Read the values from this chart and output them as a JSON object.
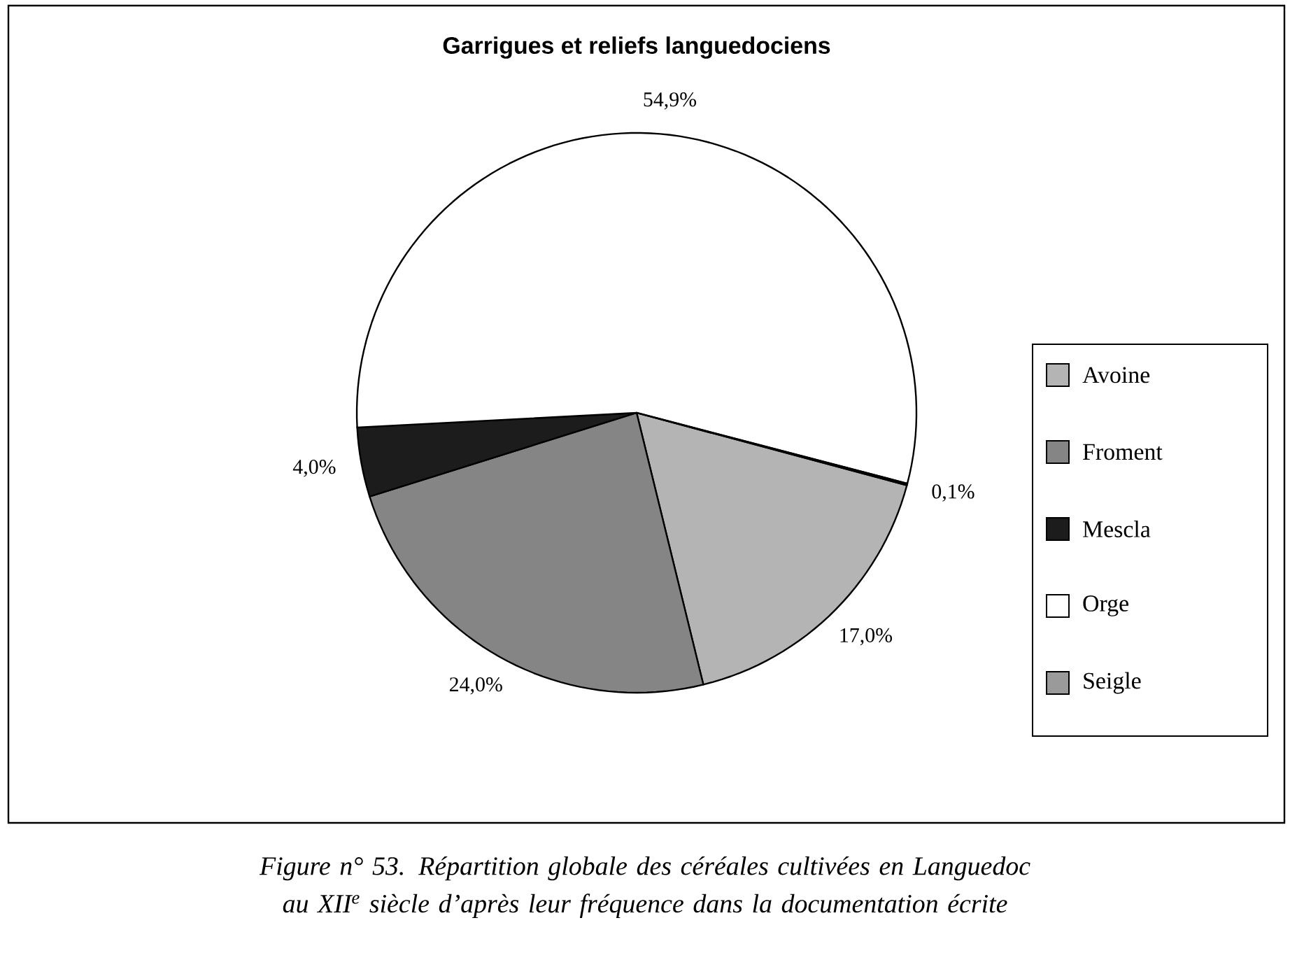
{
  "chart_data": {
    "type": "pie",
    "title": "Garrigues et reliefs languedociens",
    "categories": [
      "Avoine",
      "Froment",
      "Mescla",
      "Orge",
      "Seigle"
    ],
    "values": [
      17.0,
      24.0,
      4.0,
      54.9,
      0.1
    ],
    "colors": [
      "#b4b4b4",
      "#858585",
      "#1c1c1c",
      "#ffffff",
      "#9a9a9a"
    ],
    "value_labels": [
      "17,0%",
      "24,0%",
      "4,0%",
      "54,9%",
      "0,1%"
    ],
    "legend": "right",
    "annotations": [
      "Figure n° 53. Répartition globale des céréales cultivées en Languedoc au XII$^{e}$ siècle d’après leur fréquence dans la documentation écrite"
    ]
  }
}
